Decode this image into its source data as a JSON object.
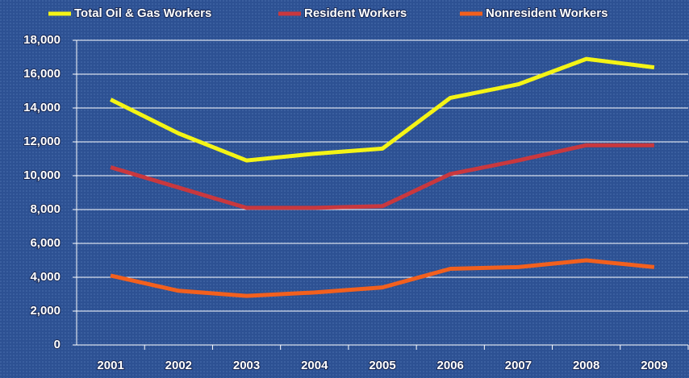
{
  "chart_data": {
    "type": "line",
    "categories": [
      "2001",
      "2002",
      "2003",
      "2004",
      "2005",
      "2006",
      "2007",
      "2008",
      "2009"
    ],
    "series": [
      {
        "name": "Total Oil & Gas Workers",
        "color": "#f4f416",
        "values": [
          14500,
          12500,
          10900,
          11300,
          11600,
          14600,
          15400,
          16900,
          16400
        ]
      },
      {
        "name": "Resident Workers",
        "color": "#c9383e",
        "values": [
          10500,
          9300,
          8100,
          8100,
          8200,
          10100,
          10900,
          11800,
          11800
        ]
      },
      {
        "name": "Nonresident Workers",
        "color": "#f2601e",
        "values": [
          4100,
          3200,
          2900,
          3100,
          3400,
          4500,
          4600,
          5000,
          4600
        ]
      }
    ],
    "ylim": [
      0,
      18000
    ],
    "yticks": [
      0,
      {
        "value": 2000,
        "label": "2,000"
      },
      {
        "value": 4000,
        "label": "4,000"
      },
      {
        "value": 6000,
        "label": "6,000"
      },
      {
        "value": 8000,
        "label": "8,000"
      },
      {
        "value": 10000,
        "label": "10,000"
      },
      {
        "value": 12000,
        "label": "12,000"
      },
      {
        "value": 14000,
        "label": "14,000"
      },
      {
        "value": 16000,
        "label": "16,000"
      },
      {
        "value": 18000,
        "label": "18,000"
      }
    ],
    "grid": true,
    "legend": "top"
  }
}
